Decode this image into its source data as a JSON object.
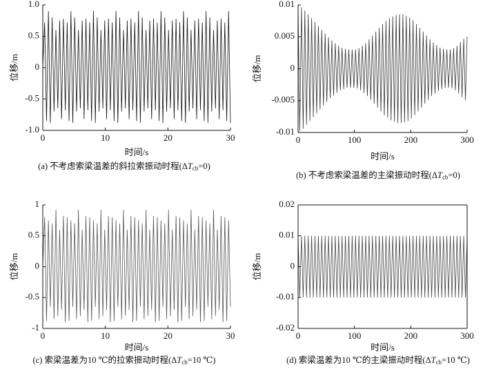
{
  "chart_data": [
    {
      "type": "line",
      "caption": [
        "(a) 不考虑索梁温差的斜拉索振动时程(Δ",
        "T",
        "cb",
        "=0)"
      ],
      "xlabel": "时间/s",
      "ylabel": "位移/m",
      "color": "#111111",
      "xlim": [
        0,
        30
      ],
      "xticks": [
        0,
        10,
        20,
        30
      ],
      "ylim": [
        -1,
        1
      ],
      "yticks": [
        {
          "value": -1,
          "label": "-1.0"
        },
        -0.5,
        0,
        0.5,
        {
          "value": 1,
          "label": "1.0"
        }
      ],
      "frame": false,
      "x": [
        0,
        0.3,
        0.6,
        0.9,
        1.2,
        1.5,
        1.8,
        2.1,
        2.4,
        2.7,
        3,
        3.3,
        3.6,
        3.9,
        4.2,
        4.5,
        4.8,
        5.1,
        5.4,
        5.7,
        6,
        6.3,
        6.6,
        6.9,
        7.2,
        7.5,
        7.8,
        8.1,
        8.4,
        8.7,
        9,
        9.3,
        9.6,
        9.9,
        10.2,
        10.5,
        10.8,
        11.1,
        11.4,
        11.7,
        12,
        12.3,
        12.6,
        12.9,
        13.2,
        13.5,
        13.8,
        14.1,
        14.4,
        14.7,
        15,
        15.3,
        15.6,
        15.9,
        16.2,
        16.5,
        16.8,
        17.1,
        17.4,
        17.7,
        18,
        18.3,
        18.6,
        18.9,
        19.2,
        19.5,
        19.8,
        20.1,
        20.4,
        20.7,
        21,
        21.3,
        21.6,
        21.9,
        22.2,
        22.5,
        22.8,
        23.1,
        23.4,
        23.7,
        24,
        24.3,
        24.6,
        24.9,
        25.2,
        25.5,
        25.8,
        26.1,
        26.4,
        26.7,
        27,
        27.3,
        27.6,
        27.9,
        28.2,
        28.5,
        28.8,
        29.1,
        29.4,
        29.7,
        30
      ],
      "values": [
        0,
        0.72,
        -0.85,
        0.9,
        -0.88,
        0.8,
        -0.7,
        0.6,
        -0.65,
        0.75,
        -0.82,
        0.78,
        -0.68,
        0.72,
        -0.85,
        0.9,
        -0.88,
        0.8,
        -0.7,
        0.6,
        -0.65,
        0.75,
        -0.82,
        0.78,
        -0.68,
        0.72,
        -0.85,
        0.9,
        -0.88,
        0.8,
        -0.7,
        0.6,
        -0.65,
        0.75,
        -0.82,
        0.78,
        -0.68,
        0.72,
        -0.85,
        0.9,
        -0.88,
        0.8,
        -0.7,
        0.6,
        -0.65,
        0.75,
        -0.82,
        0.78,
        -0.68,
        0.72,
        -0.85,
        0.9,
        -0.88,
        0.8,
        -0.7,
        0.6,
        -0.65,
        0.75,
        -0.82,
        0.78,
        -0.68,
        0.72,
        -0.85,
        0.9,
        -0.88,
        0.8,
        -0.7,
        0.6,
        -0.65,
        0.75,
        -0.82,
        0.78,
        -0.68,
        0.72,
        -0.85,
        0.9,
        -0.88,
        0.8,
        -0.7,
        0.6,
        -0.65,
        0.75,
        -0.82,
        0.78,
        -0.68,
        0.72,
        -0.85,
        0.9,
        -0.88,
        0.8,
        -0.7,
        0.6,
        -0.65,
        0.75,
        -0.82,
        0.78,
        -0.68,
        0.72,
        -0.85,
        0.9,
        -0.88
      ]
    },
    {
      "type": "line",
      "caption": [
        "(b) 不考虑索梁温差的主梁振动时程(Δ",
        "T",
        "cb",
        "=0)"
      ],
      "xlabel": "时间/s",
      "ylabel": "位移/m",
      "color": "#333333",
      "xlim": [
        0,
        300
      ],
      "xticks": [
        0,
        100,
        200,
        300
      ],
      "ylim": [
        -0.01,
        0.01
      ],
      "yticks": [
        -0.01,
        -0.005,
        0,
        0.005,
        0.01
      ],
      "frame": false,
      "x": [
        0,
        3,
        6,
        9,
        12,
        15,
        18,
        21,
        24,
        27,
        30,
        33,
        36,
        39,
        42,
        45,
        48,
        51,
        54,
        57,
        60,
        63,
        66,
        69,
        72,
        75,
        78,
        81,
        84,
        87,
        90,
        93,
        96,
        99,
        102,
        105,
        108,
        111,
        114,
        117,
        120,
        123,
        126,
        129,
        132,
        135,
        138,
        141,
        144,
        147,
        150,
        153,
        156,
        159,
        162,
        165,
        168,
        171,
        174,
        177,
        180,
        183,
        186,
        189,
        192,
        195,
        198,
        201,
        204,
        207,
        210,
        213,
        216,
        219,
        222,
        225,
        228,
        231,
        234,
        237,
        240,
        243,
        246,
        249,
        252,
        255,
        258,
        261,
        264,
        267,
        270,
        273,
        276,
        279,
        282,
        285,
        288,
        291,
        294,
        297,
        300
      ],
      "values": [
        0.01,
        -0.0098,
        0.0096,
        -0.0094,
        0.0091,
        -0.0088,
        0.0085,
        -0.0082,
        0.0079,
        -0.0076,
        0.0073,
        -0.007,
        0.0067,
        -0.0064,
        0.0061,
        -0.0058,
        0.0055,
        -0.0052,
        0.0049,
        -0.0046,
        0.0044,
        -0.0042,
        0.004,
        -0.0038,
        0.0036,
        -0.0034,
        0.0033,
        -0.0032,
        0.0031,
        -0.003,
        0.003,
        -0.003,
        0.003,
        -0.003,
        0.003,
        -0.0031,
        0.0032,
        -0.0034,
        0.0036,
        -0.0038,
        0.004,
        -0.0043,
        0.0046,
        -0.0049,
        0.0052,
        -0.0055,
        0.0058,
        -0.0061,
        0.0064,
        -0.0067,
        0.007,
        -0.0073,
        0.0075,
        -0.0077,
        0.0079,
        -0.0081,
        0.0082,
        -0.0083,
        0.0084,
        -0.0085,
        0.0085,
        -0.0085,
        0.0085,
        -0.0084,
        0.0083,
        -0.0082,
        0.008,
        -0.0078,
        0.0076,
        -0.0073,
        0.007,
        -0.0067,
        0.0064,
        -0.0061,
        0.0058,
        -0.0055,
        0.0052,
        -0.0049,
        0.0046,
        -0.0043,
        0.0041,
        -0.0039,
        0.0037,
        -0.0035,
        0.0033,
        -0.0032,
        0.0031,
        -0.003,
        0.003,
        -0.003,
        0.003,
        -0.0031,
        0.0032,
        -0.0034,
        0.0036,
        -0.0039,
        0.0042,
        -0.0045,
        0.0047,
        -0.0049,
        0.005
      ]
    },
    {
      "type": "line",
      "caption": [
        "(c) 索梁温差为10 ℃的拉索振动时程(Δ",
        "T",
        "cb",
        "=10 ℃)"
      ],
      "xlabel": "时间/s",
      "ylabel": "位移/m",
      "color": "#555555",
      "xlim": [
        0,
        30
      ],
      "xticks": [
        0,
        10,
        20,
        30
      ],
      "ylim": [
        -1,
        1
      ],
      "yticks": [
        -1,
        -0.5,
        0,
        0.5,
        1
      ],
      "frame": false,
      "x": [
        0,
        0.3,
        0.6,
        0.9,
        1.2,
        1.5,
        1.8,
        2.1,
        2.4,
        2.7,
        3,
        3.3,
        3.6,
        3.9,
        4.2,
        4.5,
        4.8,
        5.1,
        5.4,
        5.7,
        6,
        6.3,
        6.6,
        6.9,
        7.2,
        7.5,
        7.8,
        8.1,
        8.4,
        8.7,
        9,
        9.3,
        9.6,
        9.9,
        10.2,
        10.5,
        10.8,
        11.1,
        11.4,
        11.7,
        12,
        12.3,
        12.6,
        12.9,
        13.2,
        13.5,
        13.8,
        14.1,
        14.4,
        14.7,
        15,
        15.3,
        15.6,
        15.9,
        16.2,
        16.5,
        16.8,
        17.1,
        17.4,
        17.7,
        18,
        18.3,
        18.6,
        18.9,
        19.2,
        19.5,
        19.8,
        20.1,
        20.4,
        20.7,
        21,
        21.3,
        21.6,
        21.9,
        22.2,
        22.5,
        22.8,
        23.1,
        23.4,
        23.7,
        24,
        24.3,
        24.6,
        24.9,
        25.2,
        25.5,
        25.8,
        26.1,
        26.4,
        26.7,
        27,
        27.3,
        27.6,
        27.9,
        28.2,
        28.5,
        28.8,
        29.1,
        29.4,
        29.7,
        30
      ],
      "values": [
        0,
        0.8,
        -0.88,
        0.75,
        -0.65,
        0.7,
        -0.85,
        0.92,
        -0.8,
        0.6,
        -0.7,
        0.82,
        -0.9,
        0.8,
        -0.88,
        0.75,
        -0.65,
        0.7,
        -0.85,
        0.92,
        -0.8,
        0.6,
        -0.7,
        0.82,
        -0.9,
        0.8,
        -0.88,
        0.75,
        -0.65,
        0.7,
        -0.85,
        0.92,
        -0.8,
        0.6,
        -0.7,
        0.82,
        -0.9,
        0.8,
        -0.88,
        0.75,
        -0.65,
        0.7,
        -0.85,
        0.92,
        -0.8,
        0.6,
        -0.7,
        0.82,
        -0.9,
        0.8,
        -0.88,
        0.75,
        -0.65,
        0.7,
        -0.85,
        0.92,
        -0.8,
        0.6,
        -0.7,
        0.82,
        -0.9,
        0.8,
        -0.88,
        0.75,
        -0.65,
        0.7,
        -0.85,
        0.92,
        -0.8,
        0.6,
        -0.7,
        0.82,
        -0.9,
        0.8,
        -0.88,
        0.75,
        -0.65,
        0.7,
        -0.85,
        0.92,
        -0.8,
        0.6,
        -0.7,
        0.82,
        -0.9,
        0.8,
        -0.88,
        0.75,
        -0.65,
        0.7,
        -0.85,
        0.92,
        -0.8,
        0.6,
        -0.7,
        0.82,
        -0.9,
        0.8,
        -0.88,
        0.75,
        -0.65
      ]
    },
    {
      "type": "line",
      "caption": [
        "(d) 索梁温差为10 ℃的主梁振动时程(Δ",
        "T",
        "cb",
        "=10 ℃)"
      ],
      "xlabel": "时间/s",
      "ylabel": "位移/m",
      "color": "#444444",
      "xlim": [
        0,
        300
      ],
      "xticks": [
        0,
        100,
        200,
        300
      ],
      "ylim": [
        -0.02,
        0.02
      ],
      "yticks": [
        -0.02,
        -0.01,
        0,
        0.01,
        0.02
      ],
      "frame": true,
      "x": [
        0,
        3,
        6,
        9,
        12,
        15,
        18,
        21,
        24,
        27,
        30,
        33,
        36,
        39,
        42,
        45,
        48,
        51,
        54,
        57,
        60,
        63,
        66,
        69,
        72,
        75,
        78,
        81,
        84,
        87,
        90,
        93,
        96,
        99,
        102,
        105,
        108,
        111,
        114,
        117,
        120,
        123,
        126,
        129,
        132,
        135,
        138,
        141,
        144,
        147,
        150,
        153,
        156,
        159,
        162,
        165,
        168,
        171,
        174,
        177,
        180,
        183,
        186,
        189,
        192,
        195,
        198,
        201,
        204,
        207,
        210,
        213,
        216,
        219,
        222,
        225,
        228,
        231,
        234,
        237,
        240,
        243,
        246,
        249,
        252,
        255,
        258,
        261,
        264,
        267,
        270,
        273,
        276,
        279,
        282,
        285,
        288,
        291,
        294,
        297,
        300
      ],
      "values": [
        0.01,
        -0.01,
        0.01,
        -0.01,
        0.01,
        -0.01,
        0.01,
        -0.01,
        0.01,
        -0.01,
        0.01,
        -0.01,
        0.01,
        -0.01,
        0.01,
        -0.01,
        0.01,
        -0.01,
        0.01,
        -0.01,
        0.01,
        -0.01,
        0.01,
        -0.01,
        0.01,
        -0.01,
        0.01,
        -0.01,
        0.01,
        -0.01,
        0.01,
        -0.01,
        0.01,
        -0.01,
        0.01,
        -0.01,
        0.01,
        -0.01,
        0.01,
        -0.01,
        0.01,
        -0.01,
        0.01,
        -0.01,
        0.01,
        -0.01,
        0.01,
        -0.01,
        0.01,
        -0.01,
        0.01,
        -0.01,
        0.01,
        -0.01,
        0.01,
        -0.01,
        0.01,
        -0.01,
        0.01,
        -0.01,
        0.01,
        -0.01,
        0.01,
        -0.01,
        0.01,
        -0.01,
        0.01,
        -0.01,
        0.01,
        -0.01,
        0.01,
        -0.01,
        0.01,
        -0.01,
        0.01,
        -0.01,
        0.01,
        -0.01,
        0.01,
        -0.01,
        0.01,
        -0.01,
        0.01,
        -0.01,
        0.01,
        -0.01,
        0.01,
        -0.01,
        0.01,
        -0.01,
        0.01,
        -0.01,
        0.01,
        -0.01,
        0.01,
        -0.01,
        0.01,
        -0.01,
        0.01,
        -0.01,
        0.01
      ]
    }
  ]
}
